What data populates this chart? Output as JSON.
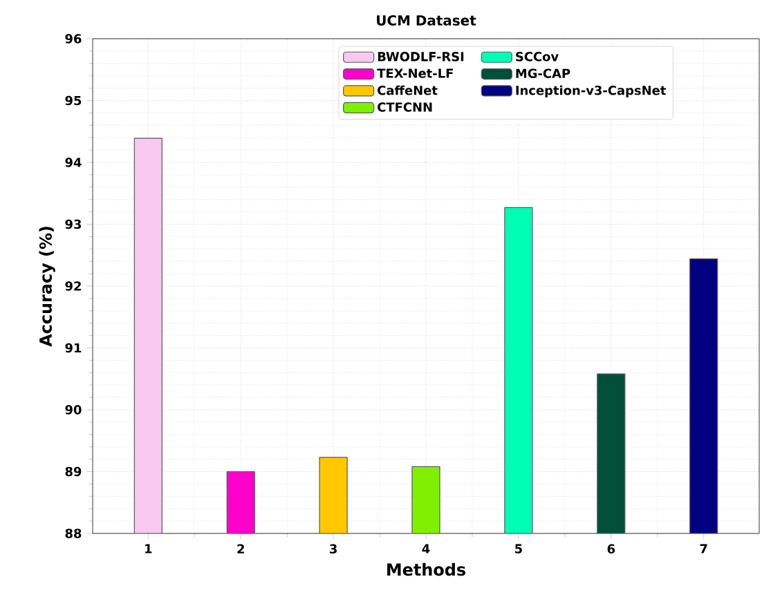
{
  "chart_data": {
    "type": "bar",
    "title": "UCM Dataset",
    "xlabel": "Methods",
    "ylabel": "Accuracy (%)",
    "categories": [
      "1",
      "2",
      "3",
      "4",
      "5",
      "6",
      "7"
    ],
    "series": [
      {
        "name": "BWODLF-RSI",
        "color": "#f8c8f0",
        "values": [
          94.39,
          null,
          null,
          null,
          null,
          null,
          null
        ]
      },
      {
        "name": "TEX-Net-LF",
        "color": "#ff00cc",
        "values": [
          null,
          89.0,
          null,
          null,
          null,
          null,
          null
        ]
      },
      {
        "name": "CaffeNet",
        "color": "#ffc800",
        "values": [
          null,
          null,
          89.23,
          null,
          null,
          null,
          null
        ]
      },
      {
        "name": "CTFCNN",
        "color": "#80f000",
        "values": [
          null,
          null,
          null,
          89.08,
          null,
          null,
          null
        ]
      },
      {
        "name": "SCCov",
        "color": "#00ffb4",
        "values": [
          null,
          null,
          null,
          null,
          93.27,
          null,
          null
        ]
      },
      {
        "name": "MG-CAP",
        "color": "#005038",
        "values": [
          null,
          null,
          null,
          null,
          null,
          90.58,
          null
        ]
      },
      {
        "name": "Inception-v3-CapsNet",
        "color": "#000080",
        "values": [
          null,
          null,
          null,
          null,
          null,
          null,
          92.44
        ]
      }
    ],
    "ylim": [
      88,
      96
    ],
    "yticks": [
      88,
      89,
      90,
      91,
      92,
      93,
      94,
      95,
      96
    ],
    "grid": true,
    "legend": "top"
  }
}
